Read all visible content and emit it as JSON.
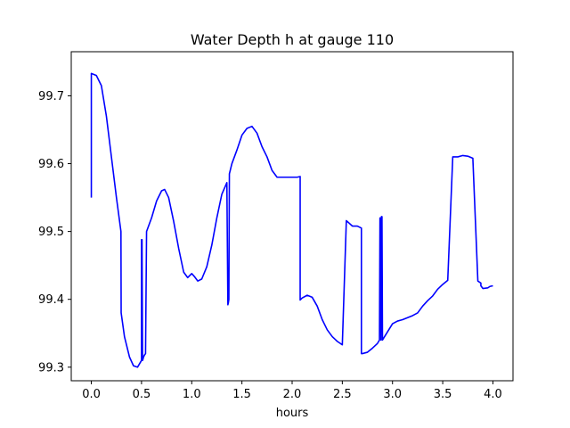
{
  "chart_data": {
    "type": "line",
    "title": "Water Depth h at gauge 110",
    "xlabel": "hours",
    "ylabel": "",
    "xlim": [
      -0.2,
      4.2
    ],
    "ylim": [
      99.28,
      99.765
    ],
    "xticks": [
      0.0,
      0.5,
      1.0,
      1.5,
      2.0,
      2.5,
      3.0,
      3.5,
      4.0
    ],
    "xtick_labels": [
      "0.0",
      "0.5",
      "1.0",
      "1.5",
      "2.0",
      "2.5",
      "3.0",
      "3.5",
      "4.0"
    ],
    "yticks": [
      99.3,
      99.4,
      99.5,
      99.6,
      99.7
    ],
    "ytick_labels": [
      "99.3",
      "99.4",
      "99.5",
      "99.6",
      "99.7"
    ],
    "grid": false,
    "series": [
      {
        "color": "#0000ff",
        "x": [
          0.0,
          0.0,
          0.05,
          0.1,
          0.15,
          0.2,
          0.25,
          0.295,
          0.297,
          0.33,
          0.38,
          0.42,
          0.46,
          0.5,
          0.5,
          0.505,
          0.51,
          0.515,
          0.52,
          0.53,
          0.54,
          0.55,
          0.55,
          0.6,
          0.65,
          0.7,
          0.73,
          0.77,
          0.82,
          0.87,
          0.92,
          0.96,
          1.0,
          1.03,
          1.06,
          1.1,
          1.15,
          1.2,
          1.25,
          1.3,
          1.35,
          1.36,
          1.365,
          1.37,
          1.375,
          1.38,
          1.4,
          1.45,
          1.5,
          1.55,
          1.6,
          1.65,
          1.7,
          1.75,
          1.8,
          1.85,
          1.9,
          1.95,
          2.0,
          2.05,
          2.08,
          2.08,
          2.1,
          2.15,
          2.2,
          2.25,
          2.3,
          2.35,
          2.4,
          2.45,
          2.5,
          2.54,
          2.54,
          2.6,
          2.65,
          2.69,
          2.69,
          2.7,
          2.75,
          2.8,
          2.85,
          2.87,
          2.875,
          2.88,
          2.885,
          2.89,
          2.895,
          2.9,
          2.95,
          3.0,
          3.05,
          3.1,
          3.15,
          3.2,
          3.25,
          3.3,
          3.35,
          3.4,
          3.45,
          3.5,
          3.55,
          3.6,
          3.65,
          3.7,
          3.75,
          3.8,
          3.85,
          3.88,
          3.88,
          3.9,
          3.95,
          3.96,
          3.97,
          4.0
        ],
        "y": [
          99.55,
          99.733,
          99.73,
          99.715,
          99.67,
          99.61,
          99.55,
          99.5,
          99.38,
          99.345,
          99.315,
          99.302,
          99.3,
          99.31,
          99.488,
          99.488,
          99.31,
          99.312,
          99.315,
          99.318,
          99.32,
          99.5,
          99.5,
          99.52,
          99.545,
          99.56,
          99.562,
          99.55,
          99.515,
          99.475,
          99.44,
          99.432,
          99.438,
          99.433,
          99.427,
          99.43,
          99.448,
          99.48,
          99.52,
          99.555,
          99.572,
          99.392,
          99.395,
          99.4,
          99.585,
          99.588,
          99.6,
          99.62,
          99.642,
          99.652,
          99.655,
          99.645,
          99.625,
          99.61,
          99.59,
          99.58,
          99.58,
          99.58,
          99.58,
          99.58,
          99.581,
          99.399,
          99.402,
          99.406,
          99.403,
          99.39,
          99.37,
          99.355,
          99.345,
          99.338,
          99.333,
          99.516,
          99.516,
          99.508,
          99.508,
          99.505,
          99.32,
          99.32,
          99.322,
          99.328,
          99.335,
          99.34,
          99.52,
          99.52,
          99.34,
          99.522,
          99.522,
          99.34,
          99.352,
          99.364,
          99.368,
          99.37,
          99.373,
          99.376,
          99.38,
          99.39,
          99.398,
          99.405,
          99.415,
          99.422,
          99.428,
          99.61,
          99.61,
          99.612,
          99.611,
          99.608,
          99.427,
          99.424,
          99.42,
          99.416,
          99.417,
          99.418,
          99.419,
          99.42
        ]
      }
    ]
  }
}
